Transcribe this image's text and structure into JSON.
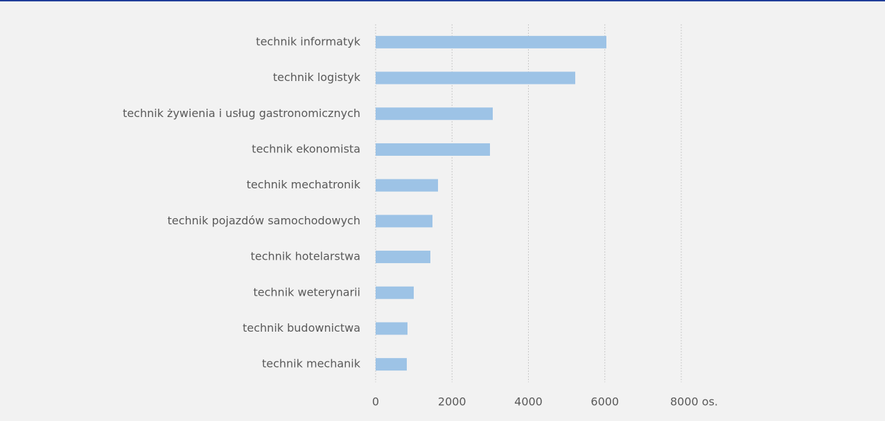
{
  "chart_data": {
    "type": "bar",
    "orientation": "horizontal",
    "categories": [
      "technik informatyk",
      "technik logistyk",
      "technik żywienia i usług gastronomicznych",
      "technik ekonomista",
      "technik mechatronik",
      "technik pojazdów samochodowych",
      "technik hotelarstwa",
      "technik weterynarii",
      "technik budownictwa",
      "technik mechanik"
    ],
    "values": [
      6040,
      5225,
      3066,
      2993,
      1633,
      1488,
      1433,
      998,
      834,
      816
    ],
    "color": "#9dc3e6",
    "xlim": [
      0,
      8000
    ],
    "xticks": [
      0,
      2000,
      4000,
      6000,
      {
        "value": 8000,
        "label": "8000 os."
      }
    ],
    "grid": true
  }
}
